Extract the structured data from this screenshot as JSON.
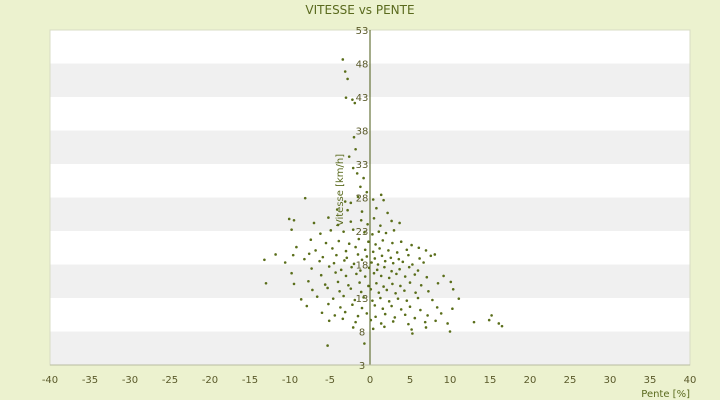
{
  "chart_data": {
    "type": "scatter",
    "title": "VITESSE vs PENTE",
    "xlabel": "Pente [%]",
    "ylabel": "Vitesse [km/h]",
    "xlim": [
      -40,
      40
    ],
    "ylim": [
      3,
      53
    ],
    "xticks": [
      "-40",
      "-35",
      "-30",
      "-25",
      "-20",
      "-15",
      "-10",
      "-5",
      "0",
      "5",
      "10",
      "15",
      "20",
      "25",
      "30",
      "35",
      "40"
    ],
    "yticks": [
      "53",
      "48",
      "43",
      "38",
      "33",
      "28",
      "23",
      "18",
      "13",
      "8",
      "3"
    ],
    "grid": true,
    "colors": {
      "background": "#ecf2cf",
      "plot_band_light": "#ffffff",
      "plot_band_dark": "#f0f0f0",
      "point": "#5a6e1a",
      "axis": "#4a5a14"
    },
    "points": [
      [
        -3.4,
        48.6
      ],
      [
        -3.1,
        46.8
      ],
      [
        -2.8,
        45.7
      ],
      [
        -3.0,
        42.9
      ],
      [
        -2.2,
        42.6
      ],
      [
        -1.9,
        42.1
      ],
      [
        -2.0,
        37.0
      ],
      [
        -1.8,
        35.2
      ],
      [
        -2.6,
        34.1
      ],
      [
        -2.1,
        32.4
      ],
      [
        -1.6,
        31.6
      ],
      [
        -0.8,
        30.9
      ],
      [
        -1.2,
        29.6
      ],
      [
        -0.4,
        28.8
      ],
      [
        -8.1,
        27.9
      ],
      [
        -3.1,
        27.4
      ],
      [
        -2.4,
        27.2
      ],
      [
        -1.5,
        28.1
      ],
      [
        0.4,
        27.7
      ],
      [
        1.4,
        28.4
      ],
      [
        1.7,
        27.6
      ],
      [
        -4.1,
        26.2
      ],
      [
        -2.8,
        26.1
      ],
      [
        -1.0,
        25.9
      ],
      [
        0.8,
        26.4
      ],
      [
        2.2,
        25.7
      ],
      [
        -10.1,
        24.8
      ],
      [
        -9.5,
        24.6
      ],
      [
        -7.0,
        24.2
      ],
      [
        -5.2,
        25.0
      ],
      [
        -4.0,
        23.9
      ],
      [
        -2.4,
        24.4
      ],
      [
        -1.1,
        24.6
      ],
      [
        -0.3,
        24.0
      ],
      [
        0.5,
        24.9
      ],
      [
        1.3,
        23.8
      ],
      [
        2.7,
        24.5
      ],
      [
        3.7,
        24.2
      ],
      [
        -9.8,
        23.2
      ],
      [
        -6.2,
        22.6
      ],
      [
        -4.9,
        23.1
      ],
      [
        -3.3,
        22.9
      ],
      [
        -2.1,
        23.2
      ],
      [
        -0.7,
        22.8
      ],
      [
        0.3,
        22.5
      ],
      [
        1.1,
        22.9
      ],
      [
        2.0,
        22.7
      ],
      [
        3.0,
        23.1
      ],
      [
        -7.4,
        21.7
      ],
      [
        -5.5,
        21.2
      ],
      [
        -3.9,
        21.5
      ],
      [
        -2.6,
        21.1
      ],
      [
        -1.4,
        21.8
      ],
      [
        -0.2,
        21.4
      ],
      [
        0.7,
        21.0
      ],
      [
        1.6,
        21.6
      ],
      [
        2.8,
        21.2
      ],
      [
        3.9,
        21.4
      ],
      [
        5.2,
        20.9
      ],
      [
        -9.2,
        20.6
      ],
      [
        -6.8,
        20.1
      ],
      [
        -4.7,
        20.4
      ],
      [
        -3.0,
        20.0
      ],
      [
        -1.8,
        20.6
      ],
      [
        -0.6,
        20.2
      ],
      [
        0.4,
        19.9
      ],
      [
        1.2,
        20.4
      ],
      [
        2.3,
        20.1
      ],
      [
        3.4,
        19.8
      ],
      [
        4.6,
        20.2
      ],
      [
        6.1,
        20.5
      ],
      [
        7.0,
        20.1
      ],
      [
        -11.8,
        19.5
      ],
      [
        -9.6,
        19.4
      ],
      [
        -7.6,
        19.6
      ],
      [
        -5.9,
        19.1
      ],
      [
        -4.2,
        19.4
      ],
      [
        -2.9,
        19.0
      ],
      [
        -1.5,
        19.5
      ],
      [
        -0.4,
        19.2
      ],
      [
        0.6,
        18.9
      ],
      [
        1.5,
        19.3
      ],
      [
        2.6,
        19.0
      ],
      [
        3.6,
        18.8
      ],
      [
        4.8,
        19.4
      ],
      [
        6.2,
        18.9
      ],
      [
        7.6,
        19.3
      ],
      [
        8.1,
        19.5
      ],
      [
        -13.2,
        18.7
      ],
      [
        -10.6,
        18.3
      ],
      [
        -8.2,
        18.8
      ],
      [
        -6.3,
        18.5
      ],
      [
        -4.5,
        18.2
      ],
      [
        -3.2,
        18.6
      ],
      [
        -2.0,
        18.1
      ],
      [
        -1.0,
        18.7
      ],
      [
        0.2,
        18.3
      ],
      [
        1.0,
        18.0
      ],
      [
        1.9,
        18.5
      ],
      [
        2.9,
        18.2
      ],
      [
        4.1,
        18.4
      ],
      [
        5.3,
        18.0
      ],
      [
        6.7,
        18.3
      ],
      [
        -7.3,
        17.4
      ],
      [
        -5.1,
        17.7
      ],
      [
        -3.6,
        17.2
      ],
      [
        -2.3,
        17.6
      ],
      [
        -1.2,
        17.1
      ],
      [
        -0.1,
        17.5
      ],
      [
        0.9,
        17.2
      ],
      [
        1.8,
        17.6
      ],
      [
        2.7,
        17.0
      ],
      [
        3.7,
        17.3
      ],
      [
        4.9,
        17.6
      ],
      [
        6.0,
        17.1
      ],
      [
        -9.8,
        16.7
      ],
      [
        -6.1,
        16.4
      ],
      [
        -4.3,
        16.8
      ],
      [
        -3.0,
        16.3
      ],
      [
        -1.7,
        16.6
      ],
      [
        -0.6,
        16.2
      ],
      [
        0.5,
        16.7
      ],
      [
        1.4,
        16.3
      ],
      [
        2.4,
        16.0
      ],
      [
        3.3,
        16.6
      ],
      [
        4.4,
        16.2
      ],
      [
        5.6,
        16.5
      ],
      [
        7.1,
        16.1
      ],
      [
        9.2,
        16.3
      ],
      [
        -13.0,
        15.2
      ],
      [
        -9.5,
        15.1
      ],
      [
        -7.7,
        15.5
      ],
      [
        -5.6,
        15.0
      ],
      [
        -4.0,
        15.4
      ],
      [
        -2.7,
        14.9
      ],
      [
        -1.3,
        15.3
      ],
      [
        -0.2,
        14.8
      ],
      [
        0.8,
        15.2
      ],
      [
        1.7,
        14.7
      ],
      [
        2.8,
        15.1
      ],
      [
        3.8,
        14.8
      ],
      [
        5.0,
        15.3
      ],
      [
        6.4,
        14.9
      ],
      [
        8.5,
        15.2
      ],
      [
        10.1,
        15.4
      ],
      [
        -7.2,
        14.2
      ],
      [
        -5.3,
        14.5
      ],
      [
        -3.8,
        14.0
      ],
      [
        -2.4,
        14.4
      ],
      [
        -1.1,
        13.9
      ],
      [
        0.1,
        14.3
      ],
      [
        1.1,
        13.8
      ],
      [
        2.1,
        14.2
      ],
      [
        3.2,
        13.7
      ],
      [
        4.3,
        14.1
      ],
      [
        5.7,
        13.8
      ],
      [
        7.3,
        14.0
      ],
      [
        10.4,
        14.3
      ],
      [
        -8.6,
        12.8
      ],
      [
        -6.6,
        13.2
      ],
      [
        -4.6,
        12.9
      ],
      [
        -3.3,
        13.3
      ],
      [
        -1.9,
        12.7
      ],
      [
        -0.8,
        13.1
      ],
      [
        0.3,
        12.6
      ],
      [
        1.3,
        13.0
      ],
      [
        2.4,
        12.5
      ],
      [
        3.5,
        12.9
      ],
      [
        4.6,
        12.6
      ],
      [
        6.0,
        13.0
      ],
      [
        7.8,
        12.7
      ],
      [
        11.1,
        12.9
      ],
      [
        -7.9,
        11.8
      ],
      [
        -5.2,
        12.1
      ],
      [
        -3.7,
        11.6
      ],
      [
        -2.2,
        12.0
      ],
      [
        -1.0,
        11.5
      ],
      [
        0.6,
        11.9
      ],
      [
        1.6,
        11.4
      ],
      [
        2.7,
        11.8
      ],
      [
        3.9,
        11.3
      ],
      [
        5.0,
        11.7
      ],
      [
        6.3,
        11.2
      ],
      [
        8.4,
        11.6
      ],
      [
        10.3,
        11.4
      ],
      [
        -6.0,
        10.8
      ],
      [
        -4.4,
        10.4
      ],
      [
        -3.1,
        10.9
      ],
      [
        -1.5,
        10.3
      ],
      [
        -0.4,
        10.7
      ],
      [
        0.7,
        10.2
      ],
      [
        1.9,
        10.6
      ],
      [
        3.1,
        10.1
      ],
      [
        4.4,
        10.5
      ],
      [
        5.6,
        10.0
      ],
      [
        7.2,
        10.4
      ],
      [
        8.9,
        10.7
      ],
      [
        15.2,
        10.4
      ],
      [
        -5.1,
        9.6
      ],
      [
        -3.4,
        9.9
      ],
      [
        -1.8,
        9.4
      ],
      [
        0.1,
        9.7
      ],
      [
        1.4,
        9.2
      ],
      [
        2.9,
        9.5
      ],
      [
        4.8,
        9.1
      ],
      [
        6.9,
        9.4
      ],
      [
        8.2,
        9.6
      ],
      [
        9.7,
        9.2
      ],
      [
        13.0,
        9.4
      ],
      [
        14.9,
        9.7
      ],
      [
        16.1,
        9.2
      ],
      [
        16.5,
        8.8
      ],
      [
        -2.1,
        8.6
      ],
      [
        0.4,
        8.4
      ],
      [
        1.8,
        8.7
      ],
      [
        5.2,
        8.3
      ],
      [
        7.0,
        8.6
      ],
      [
        10.0,
        8.0
      ],
      [
        5.3,
        7.7
      ],
      [
        -5.3,
        5.9
      ],
      [
        -0.7,
        6.2
      ]
    ]
  }
}
